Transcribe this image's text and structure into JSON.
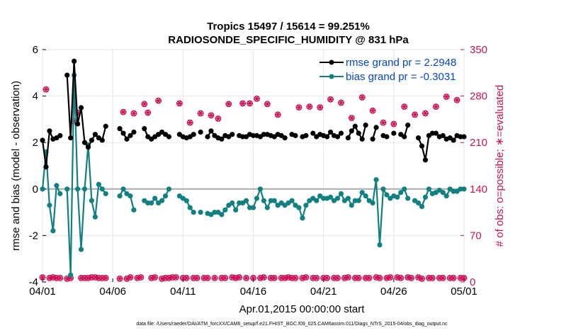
{
  "chart_data": {
    "type": "line",
    "title": "Tropics 15497 / 15614 = 99.251%",
    "subtitle": "RADIOSONDE_SPECIFIC_HUMIDITY @ 831 hPa",
    "xlabel": "Apr.01,2015 00:00:00 start",
    "ylabel_left": "rmse and bias (model - observation)",
    "ylabel_right": "# of obs: o=possible; ∗=evaluated",
    "footnote": "data file: /Users/raeder/DAI/ATM_forcXX/CAM6_setup/f.e21.FHIST_BGC.f09_025.CAM6assim.011/Diags_NTrS_2015-04/obs_diag_output.nc",
    "xlim": [
      0,
      30
    ],
    "ylim_left": [
      -4,
      6
    ],
    "ylim_right": [
      0,
      350
    ],
    "x_ticks": [
      0,
      5,
      10,
      15,
      20,
      25,
      30
    ],
    "x_tick_labels": [
      "04/01",
      "04/06",
      "04/11",
      "04/16",
      "04/21",
      "04/26",
      "05/01"
    ],
    "y_ticks_left": [
      -4,
      -2,
      0,
      2,
      4,
      6
    ],
    "y_tick_labels_left": [
      "-4",
      "-2",
      "0",
      "2",
      "4",
      "6"
    ],
    "y_ticks_right": [
      0,
      70,
      140,
      210,
      280,
      350
    ],
    "y_tick_labels_right": [
      "0",
      "70",
      "140",
      "210",
      "280",
      "350"
    ],
    "legend": [
      {
        "label": "rmse grand pr = 2.2948",
        "color": "#000000"
      },
      {
        "label": "bias grand pr = -0.3031",
        "color": "#108080"
      }
    ],
    "x": [
      0.0,
      0.25,
      0.5,
      0.75,
      1.0,
      1.25,
      1.5,
      1.75,
      2.0,
      2.25,
      2.5,
      2.75,
      3.0,
      3.25,
      3.5,
      3.75,
      4.0,
      4.25,
      4.5,
      4.75,
      5.0,
      5.25,
      5.5,
      5.75,
      6.0,
      6.25,
      6.5,
      6.75,
      7.0,
      7.25,
      7.5,
      7.75,
      8.0,
      8.25,
      8.5,
      8.75,
      9.0,
      9.25,
      9.5,
      9.75,
      10.0,
      10.25,
      10.5,
      10.75,
      11.0,
      11.25,
      11.5,
      11.75,
      12.0,
      12.25,
      12.5,
      12.75,
      13.0,
      13.25,
      13.5,
      13.75,
      14.0,
      14.25,
      14.5,
      14.75,
      15.0,
      15.25,
      15.5,
      15.75,
      16.0,
      16.25,
      16.5,
      16.75,
      17.0,
      17.25,
      17.5,
      17.75,
      18.0,
      18.25,
      18.5,
      18.75,
      19.0,
      19.25,
      19.5,
      19.75,
      20.0,
      20.25,
      20.5,
      20.75,
      21.0,
      21.25,
      21.5,
      21.75,
      22.0,
      22.25,
      22.5,
      22.75,
      23.0,
      23.25,
      23.5,
      23.75,
      24.0,
      24.25,
      24.5,
      24.75,
      25.0,
      25.25,
      25.5,
      25.75,
      26.0,
      26.25,
      26.5,
      26.75,
      27.0,
      27.25,
      27.5,
      27.75,
      28.0,
      28.25,
      28.5,
      28.75,
      29.0,
      29.25,
      29.5,
      29.75,
      30.0
    ],
    "series": [
      {
        "name": "rmse",
        "color": "#000000",
        "values": [
          2.1,
          0.95,
          2.5,
          2.15,
          2.2,
          2.3,
          null,
          4.9,
          2.2,
          5.5,
          2.8,
          3.5,
          2.0,
          1.8,
          2.1,
          2.35,
          2.2,
          2.1,
          2.7,
          null,
          null,
          null,
          2.6,
          2.4,
          2.15,
          2.3,
          2.45,
          null,
          null,
          2.6,
          2.25,
          2.15,
          2.25,
          2.35,
          2.45,
          2.35,
          2.25,
          null,
          null,
          2.35,
          2.25,
          2.2,
          2.25,
          2.35,
          null,
          2.45,
          null,
          2.25,
          2.5,
          2.3,
          2.2,
          2.15,
          2.3,
          2.25,
          2.35,
          null,
          2.3,
          2.25,
          2.25,
          2.35,
          2.3,
          2.3,
          2.25,
          2.35,
          2.35,
          2.3,
          2.25,
          2.35,
          2.3,
          2.2,
          null,
          2.35,
          2.3,
          null,
          2.25,
          2.3,
          null,
          2.4,
          2.25,
          2.35,
          2.3,
          2.25,
          2.45,
          2.3,
          2.25,
          2.4,
          null,
          2.2,
          2.5,
          2.7,
          2.4,
          2.15,
          2.75,
          null,
          2.15,
          2.65,
          null,
          2.3,
          2.25,
          null,
          2.4,
          null,
          2.35,
          2.25,
          2.75,
          null,
          null,
          2.2,
          1.85,
          1.25,
          2.3,
          2.4,
          2.4,
          2.25,
          2.3,
          2.15,
          2.2,
          2.1,
          2.3,
          2.25,
          2.25
        ]
      },
      {
        "name": "bias",
        "color": "#108080",
        "values": [
          0.0,
          1.6,
          -0.7,
          -1.8,
          0.15,
          -0.2,
          null,
          0.0,
          -3.7,
          4.9,
          0.0,
          -2.6,
          0.0,
          1.9,
          -0.5,
          -1.2,
          0.2,
          0.0,
          -0.2,
          null,
          null,
          null,
          -0.3,
          0.0,
          -0.2,
          -0.3,
          -0.9,
          null,
          null,
          -0.5,
          -0.6,
          -0.6,
          -0.4,
          -0.6,
          -0.5,
          -0.3,
          0.0,
          null,
          null,
          -0.3,
          -0.4,
          -0.5,
          -0.8,
          -1.0,
          null,
          -1.0,
          null,
          -1.05,
          -1.1,
          -1.0,
          -1.0,
          -1.1,
          -0.9,
          -0.7,
          -0.6,
          -0.9,
          -0.6,
          -0.6,
          -0.5,
          -0.8,
          -0.8,
          -0.4,
          0.0,
          -0.5,
          -0.8,
          -0.5,
          -0.5,
          -0.7,
          -0.6,
          -0.7,
          -0.6,
          -0.5,
          -0.7,
          -0.8,
          -1.25,
          -0.7,
          -0.5,
          -0.4,
          -0.5,
          -0.3,
          -0.4,
          -0.4,
          -0.35,
          -0.5,
          -0.4,
          -0.2,
          -0.5,
          -0.4,
          -0.7,
          -0.5,
          -0.5,
          -0.15,
          -0.3,
          -0.5,
          -0.6,
          0.4,
          -2.4,
          0.0,
          -0.25,
          -0.4,
          -0.3,
          -0.35,
          -0.15,
          0.0,
          -0.4,
          null,
          -0.5,
          -0.6,
          -0.75,
          -0.35,
          0.0,
          -0.2,
          -0.15,
          -0.05,
          -0.15,
          -0.3,
          0.0,
          -0.1,
          -0.1,
          0.0,
          0.0
        ]
      },
      {
        "name": "obs possible",
        "color": "#cc1155",
        "axis": "right",
        "values": [
          7,
          290,
          6,
          7,
          6,
          6,
          null,
          5,
          6,
          242,
          255,
          6,
          6,
          6,
          7,
          7,
          6,
          6,
          6,
          null,
          null,
          null,
          5,
          256,
          5,
          7,
          254,
          6,
          7,
          268,
          255,
          6,
          7,
          273,
          5,
          6,
          6,
          7,
          7,
          269,
          6,
          6,
          240,
          6,
          6,
          254,
          6,
          6,
          251,
          6,
          246,
          6,
          6,
          268,
          7,
          6,
          7,
          269,
          6,
          269,
          6,
          276,
          6,
          7,
          268,
          6,
          6,
          252,
          6,
          6,
          7,
          6,
          6,
          263,
          6,
          7,
          264,
          6,
          6,
          263,
          6,
          6,
          275,
          6,
          6,
          270,
          6,
          7,
          247,
          6,
          6,
          278,
          6,
          6,
          258,
          7,
          6,
          240,
          6,
          7,
          238,
          7,
          6,
          264,
          7,
          6,
          252,
          7,
          5,
          254,
          6,
          6,
          264,
          6,
          6,
          279,
          6,
          6,
          274,
          6,
          6
        ]
      },
      {
        "name": "obs evaluated",
        "color": "#cc1155",
        "axis": "right",
        "values": [
          7,
          290,
          6,
          7,
          6,
          6,
          null,
          5,
          6,
          242,
          255,
          6,
          6,
          6,
          7,
          7,
          6,
          6,
          6,
          null,
          null,
          null,
          5,
          256,
          5,
          7,
          254,
          6,
          7,
          268,
          255,
          6,
          7,
          273,
          5,
          6,
          6,
          7,
          7,
          269,
          6,
          6,
          240,
          6,
          6,
          254,
          6,
          6,
          251,
          6,
          246,
          6,
          6,
          268,
          7,
          6,
          7,
          269,
          6,
          269,
          6,
          276,
          6,
          7,
          268,
          6,
          6,
          252,
          6,
          6,
          7,
          6,
          6,
          263,
          6,
          7,
          264,
          6,
          6,
          263,
          6,
          6,
          275,
          6,
          6,
          270,
          6,
          7,
          247,
          6,
          6,
          278,
          6,
          6,
          258,
          7,
          6,
          240,
          6,
          7,
          238,
          7,
          6,
          264,
          7,
          6,
          252,
          7,
          5,
          254,
          6,
          6,
          264,
          6,
          6,
          279,
          6,
          6,
          274,
          6,
          6
        ]
      }
    ]
  }
}
